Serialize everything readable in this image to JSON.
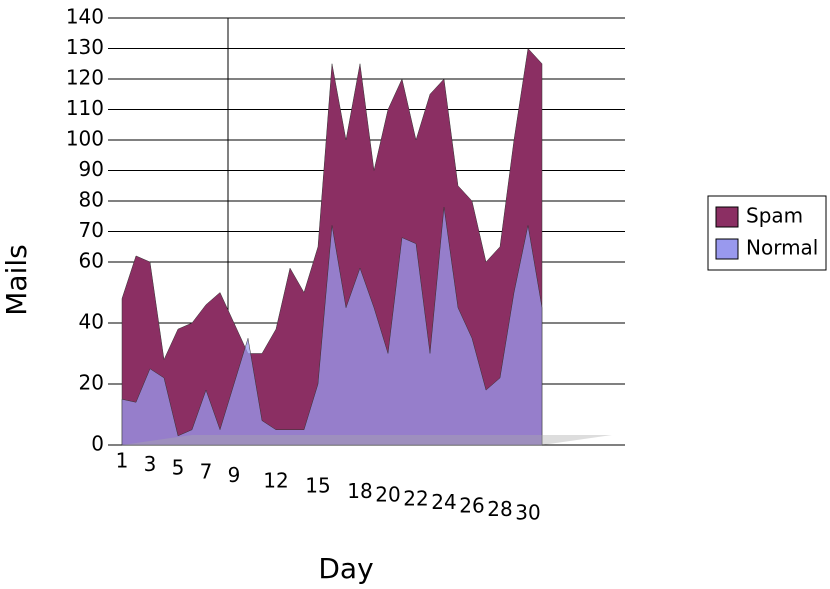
{
  "chart_data": {
    "type": "area3d",
    "x_label": "Day",
    "y_label": "Mails",
    "categories": [
      "1",
      null,
      "3",
      null,
      "5",
      null,
      "7",
      null,
      "9",
      null,
      null,
      "12",
      null,
      null,
      "15",
      null,
      null,
      "18",
      null,
      "20",
      null,
      "22",
      null,
      "24",
      null,
      "26",
      null,
      "28",
      null,
      "30",
      null
    ],
    "series": [
      {
        "name": "Spam",
        "color": "#8b2f63",
        "values": [
          48,
          62,
          60,
          28,
          38,
          40,
          46,
          50,
          40,
          30,
          30,
          38,
          58,
          50,
          65,
          125,
          100,
          125,
          90,
          110,
          120,
          100,
          115,
          120,
          85,
          80,
          60,
          65,
          100,
          130,
          125
        ]
      },
      {
        "name": "Normal",
        "color": "#9999ee",
        "values": [
          15,
          14,
          25,
          22,
          3,
          5,
          18,
          5,
          20,
          35,
          8,
          5,
          5,
          5,
          20,
          72,
          45,
          58,
          45,
          30,
          68,
          66,
          30,
          78,
          45,
          35,
          18,
          22,
          50,
          72,
          45
        ]
      }
    ],
    "ylim": [
      0,
      140
    ],
    "yticks": [
      0,
      20,
      40,
      60,
      70,
      80,
      90,
      100,
      110,
      120,
      130,
      140
    ],
    "grid": true,
    "legend": "right"
  }
}
